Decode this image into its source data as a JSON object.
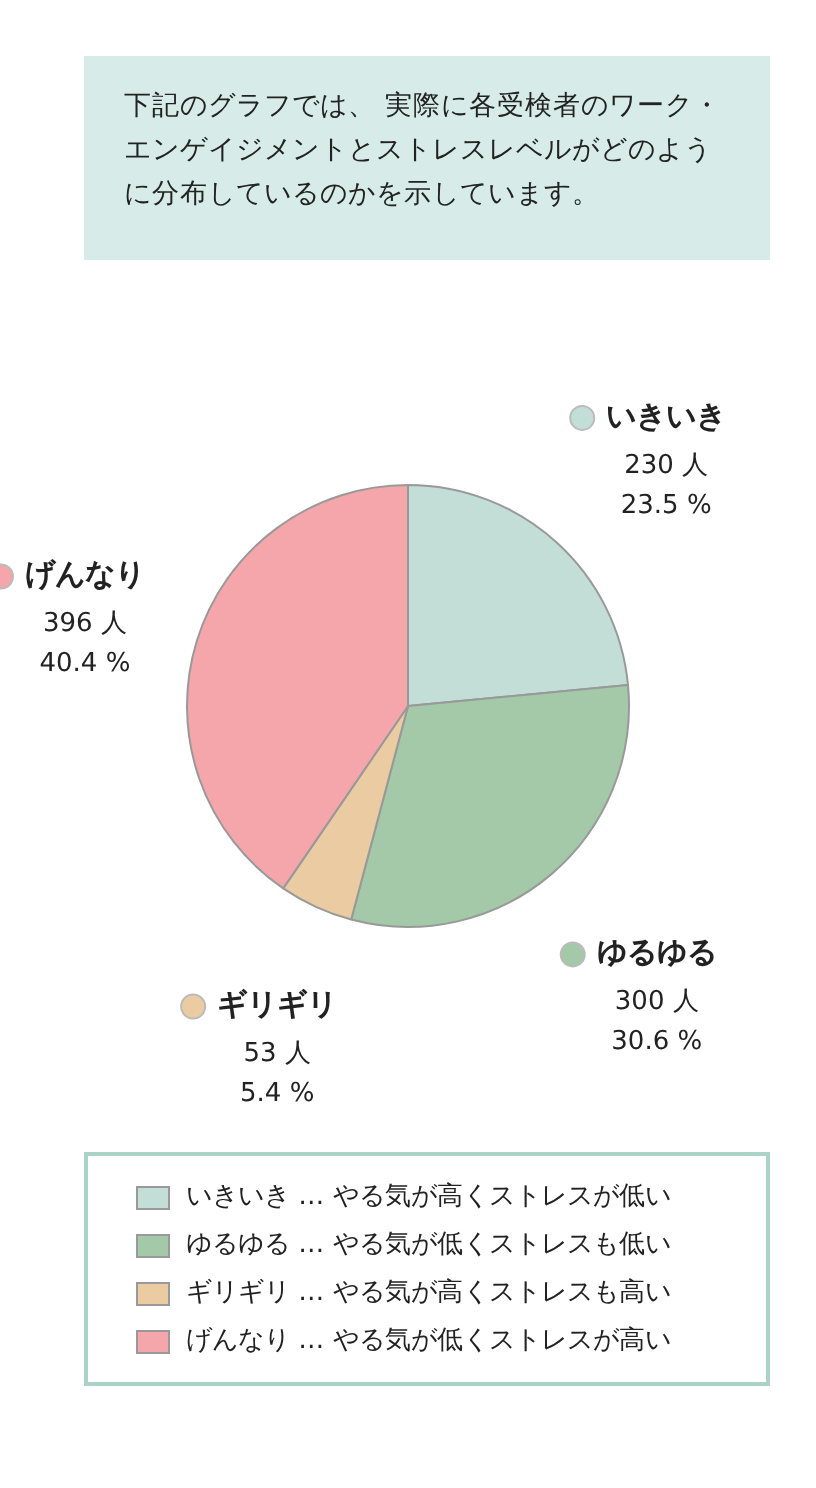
{
  "chart_data": {
    "type": "pie",
    "title": "下記のグラフでは、 実際に各受検者のワーク・エンゲイジメントとストレスレベルがどのように分布しているのかを示しています。",
    "categories": [
      "いきいき",
      "ゆるゆる",
      "ギリギリ",
      "げんなり"
    ],
    "values": [
      230,
      300,
      53,
      396
    ],
    "value_labels": [
      "230 人\n23.5 %",
      "300 人\n30.6 %",
      "53 人\n5.4 %",
      "396 人\n40.4 %"
    ],
    "colors": [
      "#c3ded7",
      "#a3c9a8",
      "#ebcba1",
      "#f4a6ab"
    ],
    "annotations": [
      "…  やる気が高くストレスが低い",
      "…  やる気が低くストレスも低い",
      "…  やる気が高くストレスも高い",
      "…  やる気が低くストレスが高い"
    ],
    "legend": "bottom"
  }
}
